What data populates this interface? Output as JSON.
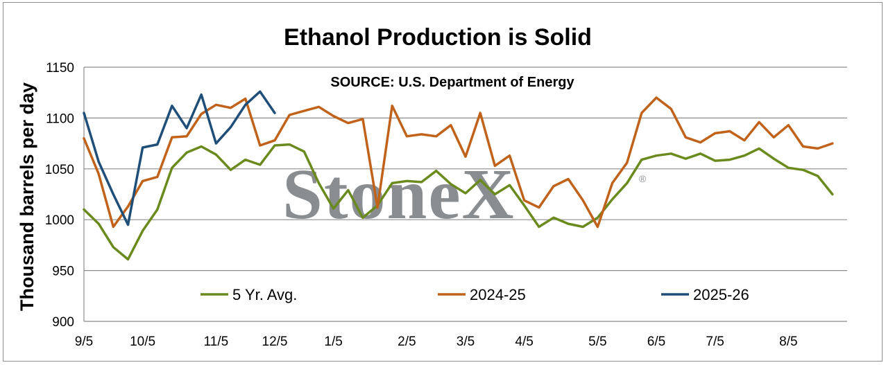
{
  "chart_data": {
    "type": "line",
    "title": "Ethanol Production is Solid",
    "source": "SOURCE: U.S. Department of Energy",
    "ylabel": "Thousand barrels per day",
    "xlabel": "",
    "ylim": [
      900,
      1150
    ],
    "yticks": [
      900,
      950,
      1000,
      1050,
      1100,
      1150
    ],
    "grid": true,
    "legend_position": "bottom",
    "watermark": "StoneX",
    "watermark_mark": "®",
    "x_tick_labels": [
      "9/5",
      "10/5",
      "11/5",
      "12/5",
      "1/5",
      "2/5",
      "3/5",
      "4/5",
      "5/5",
      "6/5",
      "7/5",
      "8/5"
    ],
    "x_tick_week_index": [
      0,
      4,
      9,
      13,
      17,
      22,
      26,
      30,
      35,
      39,
      43,
      48
    ],
    "weeks": 53,
    "series": [
      {
        "name": "5 Yr. Avg.",
        "color": "#6b8a1e",
        "values": [
          1010,
          996,
          973,
          961,
          989,
          1010,
          1051,
          1066,
          1072,
          1064,
          1049,
          1059,
          1054,
          1073,
          1074,
          1067,
          1036,
          1011,
          1029,
          1002,
          1014,
          1036,
          1038,
          1037,
          1048,
          1035,
          1026,
          1039,
          1025,
          1034,
          1014,
          993,
          1002,
          996,
          993,
          1002,
          1020,
          1036,
          1059,
          1063,
          1065,
          1060,
          1065,
          1058,
          1059,
          1063,
          1070,
          1060,
          1051,
          1049,
          1043,
          1025
        ]
      },
      {
        "name": "2024-25",
        "color": "#c0621a",
        "values": [
          1080,
          1045,
          993,
          1013,
          1038,
          1042,
          1081,
          1082,
          1104,
          1113,
          1110,
          1119,
          1073,
          1078,
          1103,
          1107,
          1111,
          1102,
          1095,
          1099,
          1012,
          1112,
          1082,
          1084,
          1082,
          1093,
          1062,
          1105,
          1053,
          1063,
          1019,
          1012,
          1033,
          1040,
          1019,
          993,
          1036,
          1056,
          1105,
          1120,
          1109,
          1081,
          1076,
          1085,
          1087,
          1078,
          1096,
          1081,
          1093,
          1072,
          1070,
          1075
        ]
      },
      {
        "name": "2025-26",
        "color": "#1f4e79",
        "values": [
          1105,
          1057,
          1025,
          995,
          1071,
          1074,
          1112,
          1090,
          1123,
          1075,
          1091,
          1113,
          1126,
          1105
        ]
      }
    ]
  }
}
